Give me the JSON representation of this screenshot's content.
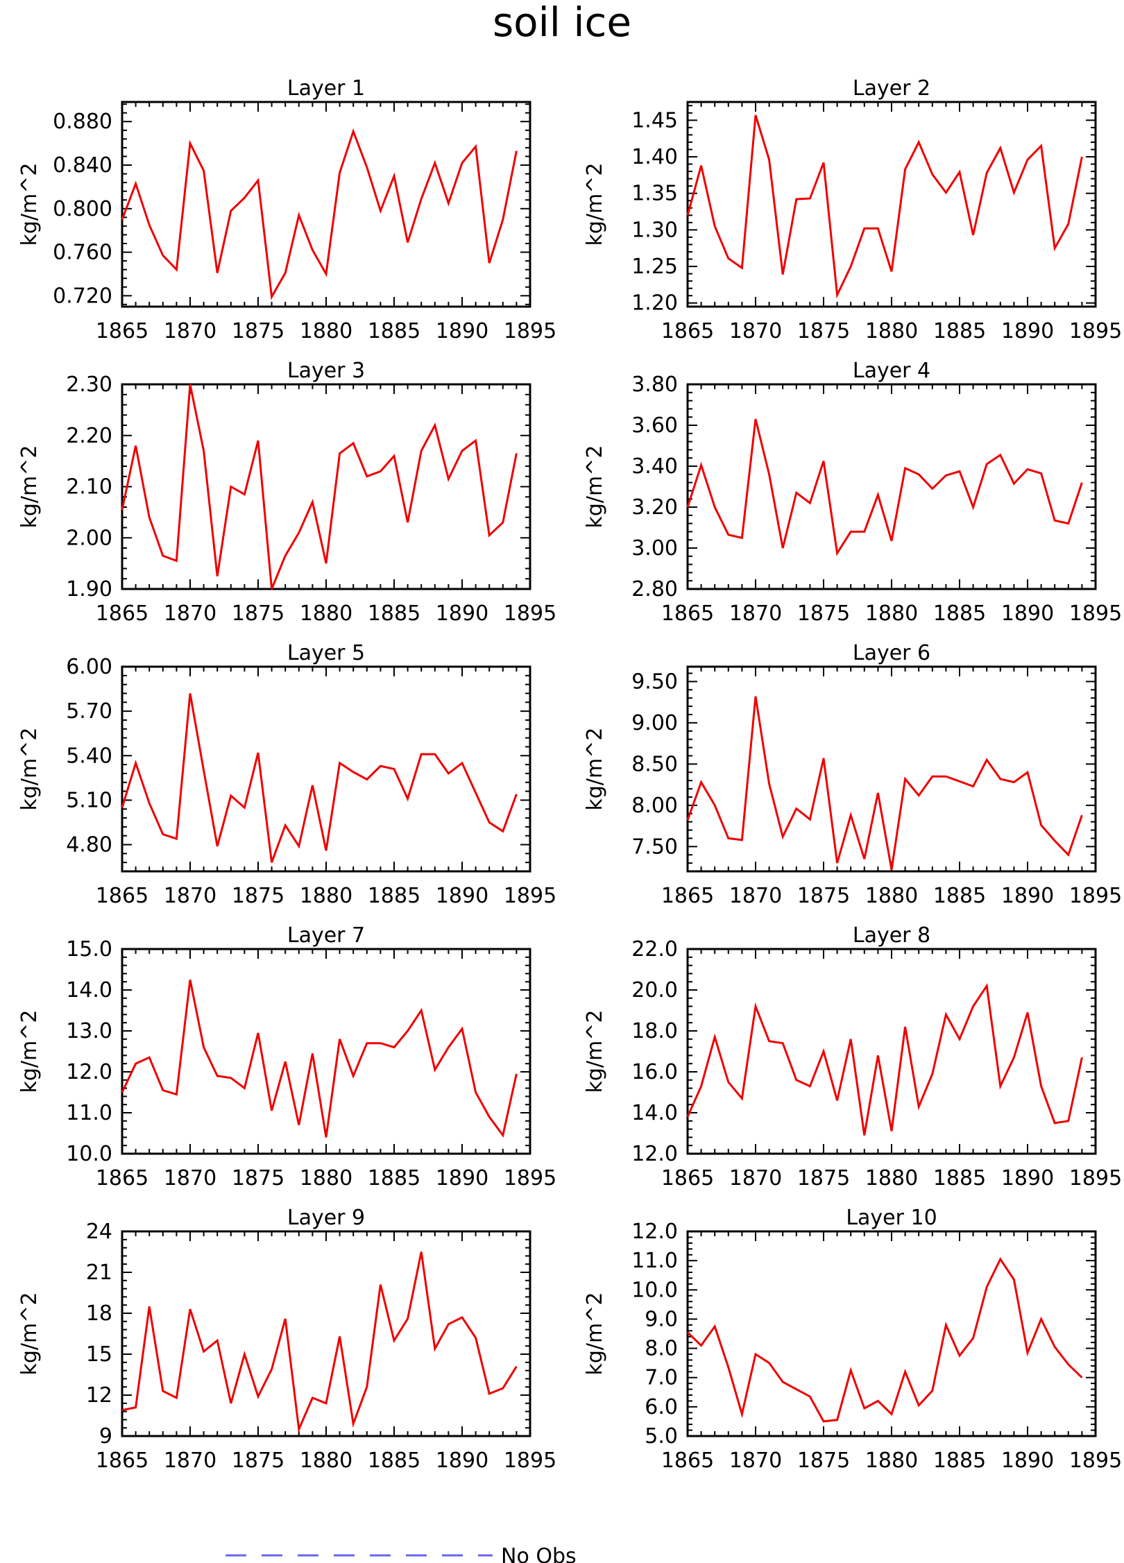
{
  "title": "soil ice",
  "legend": {
    "label": "No Obs",
    "line_color": "#6666ee",
    "line_style": "dashed"
  },
  "colors": {
    "series": "#ee0000",
    "axes": "#000000"
  },
  "chart_data": [
    {
      "type": "line",
      "title": "Layer 1",
      "ylabel": "kg/m^2",
      "xlim": [
        1865,
        1895
      ],
      "ylim": [
        0.71,
        0.898
      ],
      "xticks": [
        "1865",
        "1870",
        "1875",
        "1880",
        "1885",
        "1890",
        "1895"
      ],
      "yticks": [
        "0.720",
        "0.760",
        "0.800",
        "0.840",
        "0.880"
      ],
      "x": [
        1865,
        1866,
        1867,
        1868,
        1869,
        1870,
        1871,
        1872,
        1873,
        1874,
        1875,
        1876,
        1877,
        1878,
        1879,
        1880,
        1881,
        1882,
        1883,
        1884,
        1885,
        1886,
        1887,
        1888,
        1889,
        1890,
        1891,
        1892,
        1893,
        1894
      ],
      "values": [
        0.79,
        0.823,
        0.785,
        0.757,
        0.744,
        0.86,
        0.835,
        0.741,
        0.798,
        0.81,
        0.826,
        0.719,
        0.741,
        0.794,
        0.762,
        0.74,
        0.833,
        0.871,
        0.838,
        0.798,
        0.83,
        0.769,
        0.809,
        0.842,
        0.805,
        0.842,
        0.857,
        0.75,
        0.79,
        0.853
      ]
    },
    {
      "type": "line",
      "title": "Layer 2",
      "ylabel": "kg/m^2",
      "xlim": [
        1865,
        1895
      ],
      "ylim": [
        1.195,
        1.475
      ],
      "xticks": [
        "1865",
        "1870",
        "1875",
        "1880",
        "1885",
        "1890",
        "1895"
      ],
      "yticks": [
        "1.20",
        "1.25",
        "1.30",
        "1.35",
        "1.40",
        "1.45"
      ],
      "x": [
        1865,
        1866,
        1867,
        1868,
        1869,
        1870,
        1871,
        1872,
        1873,
        1874,
        1875,
        1876,
        1877,
        1878,
        1879,
        1880,
        1881,
        1882,
        1883,
        1884,
        1885,
        1886,
        1887,
        1888,
        1889,
        1890,
        1891,
        1892,
        1893,
        1894
      ],
      "values": [
        1.32,
        1.388,
        1.305,
        1.261,
        1.248,
        1.457,
        1.396,
        1.239,
        1.342,
        1.343,
        1.392,
        1.211,
        1.25,
        1.302,
        1.302,
        1.243,
        1.383,
        1.42,
        1.376,
        1.351,
        1.379,
        1.293,
        1.378,
        1.412,
        1.351,
        1.396,
        1.415,
        1.275,
        1.308,
        1.4
      ]
    },
    {
      "type": "line",
      "title": "Layer 3",
      "ylabel": "kg/m^2",
      "xlim": [
        1865,
        1895
      ],
      "ylim": [
        1.9,
        2.3
      ],
      "xticks": [
        "1865",
        "1870",
        "1875",
        "1880",
        "1885",
        "1890",
        "1895"
      ],
      "yticks": [
        "1.90",
        "2.00",
        "2.10",
        "2.20",
        "2.30"
      ],
      "x": [
        1865,
        1866,
        1867,
        1868,
        1869,
        1870,
        1871,
        1872,
        1873,
        1874,
        1875,
        1876,
        1877,
        1878,
        1879,
        1880,
        1881,
        1882,
        1883,
        1884,
        1885,
        1886,
        1887,
        1888,
        1889,
        1890,
        1891,
        1892,
        1893,
        1894
      ],
      "values": [
        2.055,
        2.18,
        2.04,
        1.965,
        1.955,
        2.3,
        2.17,
        1.925,
        2.1,
        2.085,
        2.19,
        1.9,
        1.965,
        2.01,
        2.07,
        1.95,
        2.165,
        2.185,
        2.12,
        2.13,
        2.16,
        2.03,
        2.17,
        2.22,
        2.115,
        2.17,
        2.19,
        2.005,
        2.03,
        2.165
      ]
    },
    {
      "type": "line",
      "title": "Layer 4",
      "ylabel": "kg/m^2",
      "xlim": [
        1865,
        1895
      ],
      "ylim": [
        2.8,
        3.8
      ],
      "xticks": [
        "1865",
        "1870",
        "1875",
        "1880",
        "1885",
        "1890",
        "1895"
      ],
      "yticks": [
        "2.80",
        "3.00",
        "3.20",
        "3.40",
        "3.60",
        "3.80"
      ],
      "x": [
        1865,
        1866,
        1867,
        1868,
        1869,
        1870,
        1871,
        1872,
        1873,
        1874,
        1875,
        1876,
        1877,
        1878,
        1879,
        1880,
        1881,
        1882,
        1883,
        1884,
        1885,
        1886,
        1887,
        1888,
        1889,
        1890,
        1891,
        1892,
        1893,
        1894
      ],
      "values": [
        3.2,
        3.405,
        3.2,
        3.065,
        3.05,
        3.63,
        3.36,
        3.0,
        3.27,
        3.22,
        3.425,
        2.975,
        3.08,
        3.08,
        3.26,
        3.035,
        3.39,
        3.36,
        3.29,
        3.355,
        3.375,
        3.2,
        3.41,
        3.455,
        3.315,
        3.385,
        3.365,
        3.135,
        3.12,
        3.32
      ]
    },
    {
      "type": "line",
      "title": "Layer 5",
      "ylabel": "kg/m^2",
      "xlim": [
        1865,
        1895
      ],
      "ylim": [
        4.62,
        6.0
      ],
      "xticks": [
        "1865",
        "1870",
        "1875",
        "1880",
        "1885",
        "1890",
        "1895"
      ],
      "yticks": [
        "4.80",
        "5.10",
        "5.40",
        "5.70",
        "6.00"
      ],
      "x": [
        1865,
        1866,
        1867,
        1868,
        1869,
        1870,
        1871,
        1872,
        1873,
        1874,
        1875,
        1876,
        1877,
        1878,
        1879,
        1880,
        1881,
        1882,
        1883,
        1884,
        1885,
        1886,
        1887,
        1888,
        1889,
        1890,
        1891,
        1892,
        1893,
        1894
      ],
      "values": [
        5.05,
        5.35,
        5.08,
        4.87,
        4.84,
        5.82,
        5.3,
        4.79,
        5.13,
        5.05,
        5.42,
        4.68,
        4.93,
        4.79,
        5.2,
        4.76,
        5.35,
        5.29,
        5.24,
        5.33,
        5.31,
        5.11,
        5.41,
        5.41,
        5.28,
        5.35,
        5.15,
        4.95,
        4.89,
        5.14
      ]
    },
    {
      "type": "line",
      "title": "Layer 6",
      "ylabel": "kg/m^2",
      "xlim": [
        1865,
        1895
      ],
      "ylim": [
        7.2,
        9.68
      ],
      "xticks": [
        "1865",
        "1870",
        "1875",
        "1880",
        "1885",
        "1890",
        "1895"
      ],
      "yticks": [
        "7.50",
        "8.00",
        "8.50",
        "9.00",
        "9.50"
      ],
      "x": [
        1865,
        1866,
        1867,
        1868,
        1869,
        1870,
        1871,
        1872,
        1873,
        1874,
        1875,
        1876,
        1877,
        1878,
        1879,
        1880,
        1881,
        1882,
        1883,
        1884,
        1885,
        1886,
        1887,
        1888,
        1889,
        1890,
        1891,
        1892,
        1893,
        1894
      ],
      "values": [
        7.82,
        8.28,
        8.0,
        7.6,
        7.58,
        9.32,
        8.26,
        7.62,
        7.96,
        7.83,
        8.57,
        7.3,
        7.88,
        7.35,
        8.15,
        7.22,
        8.32,
        8.12,
        8.35,
        8.35,
        8.29,
        8.23,
        8.55,
        8.32,
        8.28,
        8.4,
        7.76,
        7.57,
        7.4,
        7.88
      ]
    },
    {
      "type": "line",
      "title": "Layer 7",
      "ylabel": "kg/m^2",
      "xlim": [
        1865,
        1895
      ],
      "ylim": [
        10.0,
        15.0
      ],
      "xticks": [
        "1865",
        "1870",
        "1875",
        "1880",
        "1885",
        "1890",
        "1895"
      ],
      "yticks": [
        "10.0",
        "11.0",
        "12.0",
        "13.0",
        "14.0",
        "15.0"
      ],
      "x": [
        1865,
        1866,
        1867,
        1868,
        1869,
        1870,
        1871,
        1872,
        1873,
        1874,
        1875,
        1876,
        1877,
        1878,
        1879,
        1880,
        1881,
        1882,
        1883,
        1884,
        1885,
        1886,
        1887,
        1888,
        1889,
        1890,
        1891,
        1892,
        1893,
        1894
      ],
      "values": [
        11.5,
        12.2,
        12.35,
        11.55,
        11.45,
        14.25,
        12.6,
        11.9,
        11.85,
        11.6,
        12.95,
        11.05,
        12.25,
        10.7,
        12.45,
        10.4,
        12.8,
        11.9,
        12.7,
        12.7,
        12.6,
        13.0,
        13.5,
        12.05,
        12.6,
        13.05,
        11.5,
        10.9,
        10.45,
        11.95
      ]
    },
    {
      "type": "line",
      "title": "Layer 8",
      "ylabel": "kg/m^2",
      "xlim": [
        1865,
        1895
      ],
      "ylim": [
        12.0,
        22.0
      ],
      "xticks": [
        "1865",
        "1870",
        "1875",
        "1880",
        "1885",
        "1890",
        "1895"
      ],
      "yticks": [
        "12.0",
        "14.0",
        "16.0",
        "18.0",
        "20.0",
        "22.0"
      ],
      "x": [
        1865,
        1866,
        1867,
        1868,
        1869,
        1870,
        1871,
        1872,
        1873,
        1874,
        1875,
        1876,
        1877,
        1878,
        1879,
        1880,
        1881,
        1882,
        1883,
        1884,
        1885,
        1886,
        1887,
        1888,
        1889,
        1890,
        1891,
        1892,
        1893,
        1894
      ],
      "values": [
        13.8,
        15.3,
        17.7,
        15.5,
        14.7,
        19.2,
        17.5,
        17.4,
        15.6,
        15.3,
        17.0,
        14.6,
        17.6,
        12.9,
        16.8,
        13.1,
        18.2,
        14.3,
        15.9,
        18.8,
        17.6,
        19.2,
        20.2,
        15.3,
        16.7,
        18.9,
        15.3,
        13.5,
        13.6,
        16.7
      ]
    },
    {
      "type": "line",
      "title": "Layer 9",
      "ylabel": "kg/m^2",
      "xlim": [
        1865,
        1895
      ],
      "ylim": [
        9,
        24
      ],
      "xticks": [
        "1865",
        "1870",
        "1875",
        "1880",
        "1885",
        "1890",
        "1895"
      ],
      "yticks": [
        "9",
        "12",
        "15",
        "18",
        "21",
        "24"
      ],
      "x": [
        1865,
        1866,
        1867,
        1868,
        1869,
        1870,
        1871,
        1872,
        1873,
        1874,
        1875,
        1876,
        1877,
        1878,
        1879,
        1880,
        1881,
        1882,
        1883,
        1884,
        1885,
        1886,
        1887,
        1888,
        1889,
        1890,
        1891,
        1892,
        1893,
        1894
      ],
      "values": [
        10.9,
        11.1,
        18.5,
        12.3,
        11.8,
        18.3,
        15.2,
        16.0,
        11.4,
        15.0,
        11.9,
        13.9,
        17.6,
        9.5,
        11.8,
        11.4,
        16.3,
        9.9,
        12.6,
        20.1,
        16.0,
        17.6,
        22.5,
        15.4,
        17.2,
        17.7,
        16.2,
        12.1,
        12.5,
        14.1
      ]
    },
    {
      "type": "line",
      "title": "Layer 10",
      "ylabel": "kg/m^2",
      "xlim": [
        1865,
        1895
      ],
      "ylim": [
        5.0,
        12.0
      ],
      "xticks": [
        "1865",
        "1870",
        "1875",
        "1880",
        "1885",
        "1890",
        "1895"
      ],
      "yticks": [
        "5.0",
        "6.0",
        "7.0",
        "8.0",
        "9.0",
        "10.0",
        "11.0",
        "12.0"
      ],
      "x": [
        1865,
        1866,
        1867,
        1868,
        1869,
        1870,
        1871,
        1872,
        1873,
        1874,
        1875,
        1876,
        1877,
        1878,
        1879,
        1880,
        1881,
        1882,
        1883,
        1884,
        1885,
        1886,
        1887,
        1888,
        1889,
        1890,
        1891,
        1892,
        1893,
        1894
      ],
      "values": [
        8.55,
        8.1,
        8.75,
        7.35,
        5.75,
        7.8,
        7.5,
        6.85,
        6.6,
        6.35,
        5.5,
        5.55,
        7.25,
        5.95,
        6.2,
        5.75,
        7.2,
        6.05,
        6.55,
        8.8,
        7.75,
        8.35,
        10.1,
        11.05,
        10.35,
        7.85,
        9.0,
        8.05,
        7.45,
        7.0
      ]
    }
  ]
}
